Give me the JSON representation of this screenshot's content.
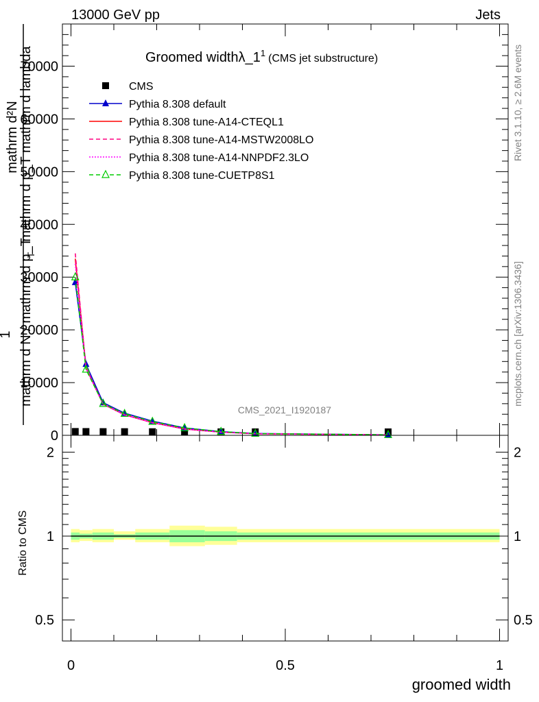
{
  "header": {
    "energy": "13000 GeV pp",
    "category": "Jets"
  },
  "main_title": {
    "text": "Groomed width",
    "symbol": "λ_1",
    "sup": "1",
    "subtitle": "(CMS jet substructure)"
  },
  "watermark": "CMS_2021_I1920187",
  "side_labels": {
    "rivet": "Rivet 3.1.10, ≥ 2.6M events",
    "mcplots": "mcplots.cern.ch [arXiv:1306.3436]"
  },
  "ylabel_upper": {
    "numerator_line1": "mathrm d²N",
    "numerator_line2": "mathrm d p_T mathrm d lambda",
    "one": "1",
    "denominator_line1": "mathrm d N / mathrm d p_T",
    "sub_T": "T"
  },
  "ylabel_ratio": "Ratio to CMS",
  "xlabel": "groomed width",
  "chart_data": [
    {
      "type": "scatter",
      "name": "main",
      "xlim": [
        -0.02,
        1.02
      ],
      "ylim": [
        0,
        78000
      ],
      "yticks": [
        0,
        10000,
        20000,
        30000,
        40000,
        50000,
        60000,
        70000
      ],
      "yticklabels": [
        "0",
        "10000",
        "20000",
        "30000",
        "40000",
        "50000",
        "60000",
        "70000"
      ],
      "legend_position": "top-left",
      "series": [
        {
          "name": "CMS",
          "color": "#000000",
          "style": "marker-square",
          "x": [
            0.01,
            0.035,
            0.075,
            0.125,
            0.19,
            0.265,
            0.35,
            0.43,
            0.74
          ],
          "y": [
            80,
            70,
            55,
            45,
            35,
            25,
            15,
            10,
            5
          ]
        },
        {
          "name": "Pythia 8.308 default",
          "color": "#0000cc",
          "style": "solid-triangle",
          "x": [
            0.01,
            0.035,
            0.075,
            0.125,
            0.19,
            0.265,
            0.35,
            0.43,
            0.74
          ],
          "y": [
            29000,
            13500,
            6200,
            4200,
            2700,
            1400,
            700,
            350,
            90
          ]
        },
        {
          "name": "Pythia 8.308 tune-A14-CTEQL1",
          "color": "#ff0000",
          "style": "solid",
          "x": [
            0.01,
            0.035,
            0.075,
            0.125,
            0.19,
            0.265,
            0.35,
            0.43,
            0.74
          ],
          "y": [
            33500,
            12800,
            5900,
            3900,
            2400,
            1200,
            600,
            300,
            80
          ]
        },
        {
          "name": "Pythia 8.308 tune-A14-MSTW2008LO",
          "color": "#ff0080",
          "style": "dashed",
          "x": [
            0.01,
            0.035,
            0.075,
            0.125,
            0.19,
            0.265,
            0.35,
            0.43,
            0.74
          ],
          "y": [
            34500,
            12900,
            5900,
            3900,
            2400,
            1200,
            600,
            300,
            80
          ]
        },
        {
          "name": "Pythia 8.308 tune-A14-NNPDF2.3LO",
          "color": "#ff00ff",
          "style": "dotted",
          "x": [
            0.01,
            0.035,
            0.075,
            0.125,
            0.19,
            0.265,
            0.35,
            0.43,
            0.74
          ],
          "y": [
            32500,
            12700,
            5900,
            3900,
            2400,
            1200,
            600,
            300,
            80
          ]
        },
        {
          "name": "Pythia 8.308 tune-CUETP8S1",
          "color": "#00cc00",
          "style": "dashed-open-triangle",
          "x": [
            0.01,
            0.035,
            0.075,
            0.125,
            0.19,
            0.265,
            0.35,
            0.43,
            0.74
          ],
          "y": [
            30000,
            12500,
            6000,
            4100,
            2600,
            1400,
            700,
            330,
            90
          ]
        }
      ]
    },
    {
      "type": "line",
      "name": "ratio",
      "xlim": [
        -0.02,
        1.02
      ],
      "ylim": [
        0.42,
        2.3
      ],
      "ylog": true,
      "yticks": [
        0.5,
        1,
        2
      ],
      "yticklabels": [
        "0.5",
        "1",
        "2"
      ],
      "xticks": [
        0,
        0.5,
        1
      ],
      "xticklabels": [
        "0",
        "0.5",
        "1"
      ],
      "reference_line": 1,
      "bands": {
        "x_edges": [
          0,
          0.02,
          0.05,
          0.1,
          0.15,
          0.23,
          0.3125,
          0.3875,
          0.4688,
          1.0
        ],
        "outer_low": [
          0.95,
          0.96,
          0.95,
          0.97,
          0.95,
          0.92,
          0.93,
          0.95,
          0.95
        ],
        "outer_high": [
          1.06,
          1.05,
          1.06,
          1.04,
          1.06,
          1.09,
          1.08,
          1.06,
          1.06
        ],
        "inner_low": [
          0.97,
          0.98,
          0.97,
          0.985,
          0.97,
          0.95,
          0.96,
          0.97,
          0.97
        ],
        "inner_high": [
          1.03,
          1.02,
          1.03,
          1.015,
          1.03,
          1.05,
          1.04,
          1.03,
          1.03
        ],
        "outer_color": "#ffff99",
        "inner_color": "#99ff99"
      }
    }
  ]
}
